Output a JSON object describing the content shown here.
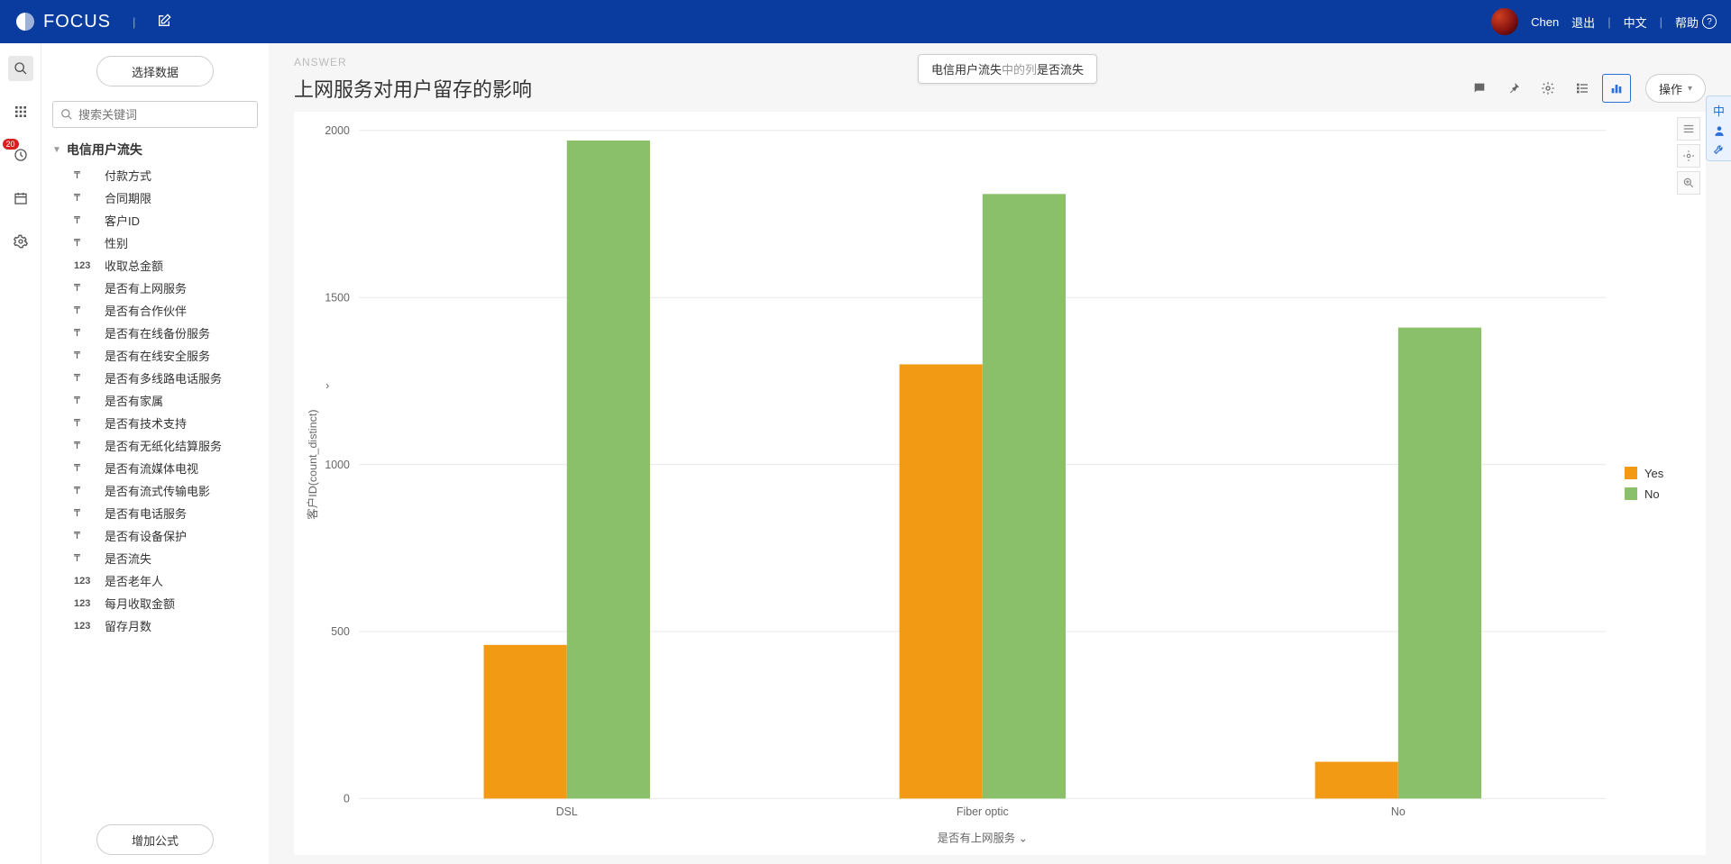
{
  "header": {
    "brand": "FOCUS",
    "user": "Chen",
    "logout": "退出",
    "lang": "中文",
    "help": "帮助"
  },
  "rail": {
    "badge": "20"
  },
  "panel": {
    "choose": "选择数据",
    "search_ph": "搜索关键词",
    "dataset": "电信用户流失",
    "fields": [
      {
        "type": "T",
        "label": "付款方式"
      },
      {
        "type": "T",
        "label": "合同期限"
      },
      {
        "type": "T",
        "label": "客户ID"
      },
      {
        "type": "T",
        "label": "性别"
      },
      {
        "type": "123",
        "label": "收取总金额"
      },
      {
        "type": "T",
        "label": "是否有上网服务"
      },
      {
        "type": "T",
        "label": "是否有合作伙伴"
      },
      {
        "type": "T",
        "label": "是否有在线备份服务"
      },
      {
        "type": "T",
        "label": "是否有在线安全服务"
      },
      {
        "type": "T",
        "label": "是否有多线路电话服务"
      },
      {
        "type": "T",
        "label": "是否有家属"
      },
      {
        "type": "T",
        "label": "是否有技术支持"
      },
      {
        "type": "T",
        "label": "是否有无纸化结算服务"
      },
      {
        "type": "T",
        "label": "是否有流媒体电视"
      },
      {
        "type": "T",
        "label": "是否有流式传输电影"
      },
      {
        "type": "T",
        "label": "是否有电话服务"
      },
      {
        "type": "T",
        "label": "是否有设备保护"
      },
      {
        "type": "T",
        "label": "是否流失"
      },
      {
        "type": "123",
        "label": "是否老年人"
      },
      {
        "type": "123",
        "label": "每月收取金额"
      },
      {
        "type": "123",
        "label": "留存月数"
      }
    ],
    "add_formula": "增加公式"
  },
  "tip": {
    "pre": "电信用户流失",
    "mid": "中的列",
    "post": "是否流失"
  },
  "answer_label": "ANSWER",
  "chart_title": "上网服务对用户留存的影响",
  "ops": "操作",
  "chart": {
    "type": "grouped-bar",
    "categories": [
      "DSL",
      "Fiber optic",
      "No"
    ],
    "series": [
      {
        "name": "Yes",
        "color": "#f29a13",
        "values": [
          460,
          1300,
          110
        ]
      },
      {
        "name": "No",
        "color": "#8bc06a",
        "values": [
          1970,
          1810,
          1410
        ]
      }
    ],
    "ylabel": "客户ID(count_distinct)",
    "xlabel": "是否有上网服务",
    "ylim": [
      0,
      2000
    ],
    "ytick_step": 500,
    "bar_colors": {
      "Yes": "#f29a13",
      "No": "#8bc06a"
    },
    "grid_color": "#e8e8e8",
    "background": "#ffffff",
    "label_fontsize": 12
  },
  "legend": [
    {
      "label": "Yes",
      "color": "#f29a13"
    },
    {
      "label": "No",
      "color": "#8bc06a"
    }
  ],
  "edge_label": "中"
}
